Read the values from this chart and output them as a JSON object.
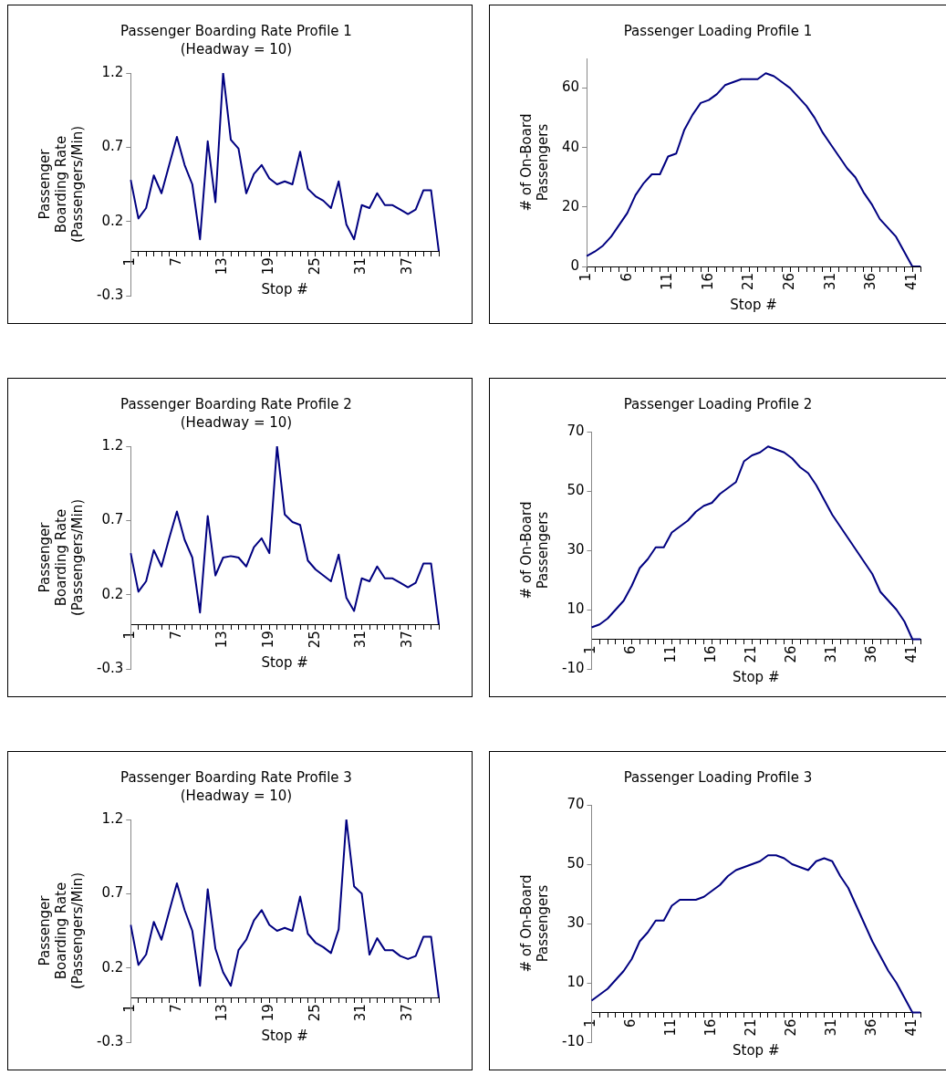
{
  "chart_data": [
    {
      "type": "line",
      "title": "Passenger Boarding Rate Profile 1",
      "subtitle": "(Headway = 10)",
      "xlabel": "Stop #",
      "ylabel": "Passenger\nBoarding Rate\n(Passengers/Min)",
      "categories": [
        "1",
        null,
        null,
        null,
        null,
        null,
        "7",
        null,
        null,
        null,
        null,
        null,
        "13",
        null,
        null,
        null,
        null,
        null,
        "19",
        null,
        null,
        null,
        null,
        null,
        "25",
        null,
        null,
        null,
        null,
        null,
        "31",
        null,
        null,
        null,
        null,
        null,
        "37",
        null,
        null,
        null,
        null
      ],
      "series": [
        {
          "color": "#000080",
          "values": [
            0.48,
            0.22,
            0.29,
            0.51,
            0.39,
            0.58,
            0.77,
            0.58,
            0.45,
            0.08,
            0.74,
            0.33,
            1.2,
            0.75,
            0.69,
            0.39,
            0.52,
            0.58,
            0.49,
            0.45,
            0.47,
            0.45,
            0.67,
            0.42,
            0.37,
            0.34,
            0.29,
            0.47,
            0.18,
            0.08,
            0.31,
            0.29,
            0.39,
            0.31,
            0.31,
            0.28,
            0.25,
            0.28,
            0.41,
            0.41,
            0
          ]
        }
      ],
      "ylim": [
        -0.3,
        1.2
      ],
      "yticks": [
        -0.3,
        0.2,
        0.7,
        1.2
      ],
      "marker": "none"
    },
    {
      "type": "line",
      "title": "Passenger Loading Profile 1",
      "xlabel": "Stop #",
      "ylabel": "# of On-Board\nPassengers",
      "categories": [
        "1",
        null,
        null,
        null,
        null,
        "6",
        null,
        null,
        null,
        null,
        "11",
        null,
        null,
        null,
        null,
        "16",
        null,
        null,
        null,
        null,
        "21",
        null,
        null,
        null,
        null,
        "26",
        null,
        null,
        null,
        null,
        "31",
        null,
        null,
        null,
        null,
        "36",
        null,
        null,
        null,
        null,
        "41",
        null
      ],
      "series": [
        {
          "color": "#000080",
          "values": [
            3.5,
            5,
            7,
            10,
            14,
            18,
            24,
            28,
            31,
            31,
            37,
            38,
            46,
            51,
            55,
            56,
            58,
            61,
            62,
            63,
            63,
            63,
            65,
            64,
            62,
            60,
            57,
            54,
            50,
            45,
            41,
            37,
            33,
            30,
            25,
            21,
            16,
            13,
            10,
            5,
            0,
            0
          ]
        }
      ],
      "ylim": [
        0,
        70
      ],
      "yticks": [
        0,
        20,
        40,
        60
      ],
      "marker": "none"
    },
    {
      "type": "line",
      "title": "Passenger Boarding Rate Profile 2",
      "subtitle": "(Headway = 10)",
      "xlabel": "Stop #",
      "ylabel": "Passenger\nBoarding Rate\n(Passengers/Min)",
      "categories": [
        "1",
        null,
        null,
        null,
        null,
        null,
        "7",
        null,
        null,
        null,
        null,
        null,
        "13",
        null,
        null,
        null,
        null,
        null,
        "19",
        null,
        null,
        null,
        null,
        null,
        "25",
        null,
        null,
        null,
        null,
        null,
        "31",
        null,
        null,
        null,
        null,
        null,
        "37",
        null,
        null,
        null,
        null
      ],
      "series": [
        {
          "color": "#000080",
          "values": [
            0.48,
            0.22,
            0.29,
            0.5,
            0.39,
            0.58,
            0.76,
            0.57,
            0.45,
            0.08,
            0.73,
            0.33,
            0.45,
            0.46,
            0.45,
            0.39,
            0.52,
            0.58,
            0.48,
            1.2,
            0.74,
            0.69,
            0.67,
            0.43,
            0.37,
            0.33,
            0.29,
            0.47,
            0.18,
            0.09,
            0.31,
            0.29,
            0.39,
            0.31,
            0.31,
            0.28,
            0.25,
            0.28,
            0.41,
            0.41,
            0
          ]
        }
      ],
      "ylim": [
        -0.3,
        1.2
      ],
      "yticks": [
        -0.3,
        0.2,
        0.7,
        1.2
      ],
      "marker": "none"
    },
    {
      "type": "line",
      "title": "Passenger Loading Profile 2",
      "xlabel": "Stop #",
      "ylabel": "# of On-Board\nPassengers",
      "categories": [
        "1",
        null,
        null,
        null,
        null,
        "6",
        null,
        null,
        null,
        null,
        "11",
        null,
        null,
        null,
        null,
        "16",
        null,
        null,
        null,
        null,
        "21",
        null,
        null,
        null,
        null,
        "26",
        null,
        null,
        null,
        null,
        "31",
        null,
        null,
        null,
        null,
        "36",
        null,
        null,
        null,
        null,
        "41",
        null
      ],
      "series": [
        {
          "color": "#000080",
          "values": [
            4,
            5,
            7,
            10,
            13,
            18,
            24,
            27,
            31,
            31,
            36,
            38,
            40,
            43,
            45,
            46,
            49,
            51,
            53,
            60,
            62,
            63,
            65,
            64,
            63,
            61,
            58,
            56,
            52,
            47,
            42,
            38,
            34,
            30,
            26,
            22,
            16,
            13,
            10,
            6,
            0,
            0
          ]
        }
      ],
      "ylim": [
        -10,
        70
      ],
      "yticks": [
        -10,
        10,
        30,
        50,
        70
      ],
      "marker": "none"
    },
    {
      "type": "line",
      "title": "Passenger Boarding Rate Profile 3",
      "subtitle": "(Headway = 10)",
      "xlabel": "Stop #",
      "ylabel": "Passenger\nBoarding Rate\n(Passengers/Min)",
      "categories": [
        "1",
        null,
        null,
        null,
        null,
        null,
        "7",
        null,
        null,
        null,
        null,
        null,
        "13",
        null,
        null,
        null,
        null,
        null,
        "19",
        null,
        null,
        null,
        null,
        null,
        "25",
        null,
        null,
        null,
        null,
        null,
        "31",
        null,
        null,
        null,
        null,
        null,
        "37",
        null,
        null,
        null,
        null
      ],
      "series": [
        {
          "color": "#000080",
          "values": [
            0.49,
            0.22,
            0.29,
            0.51,
            0.39,
            0.58,
            0.77,
            0.59,
            0.45,
            0.08,
            0.73,
            0.33,
            0.17,
            0.08,
            0.32,
            0.39,
            0.52,
            0.59,
            0.49,
            0.45,
            0.47,
            0.45,
            0.68,
            0.43,
            0.37,
            0.34,
            0.3,
            0.46,
            1.2,
            0.75,
            0.7,
            0.29,
            0.4,
            0.32,
            0.32,
            0.28,
            0.26,
            0.28,
            0.41,
            0.41,
            0
          ]
        }
      ],
      "ylim": [
        -0.3,
        1.2
      ],
      "yticks": [
        -0.3,
        0.2,
        0.7,
        1.2
      ],
      "marker": "none"
    },
    {
      "type": "line",
      "title": "Passenger Loading Profile 3",
      "xlabel": "Stop #",
      "ylabel": "# of On-Board\nPassengers",
      "categories": [
        "1",
        null,
        null,
        null,
        null,
        "6",
        null,
        null,
        null,
        null,
        "11",
        null,
        null,
        null,
        null,
        "16",
        null,
        null,
        null,
        null,
        "21",
        null,
        null,
        null,
        null,
        "26",
        null,
        null,
        null,
        null,
        "31",
        null,
        null,
        null,
        null,
        "36",
        null,
        null,
        null,
        null,
        "41",
        null
      ],
      "series": [
        {
          "color": "#000080",
          "values": [
            4,
            6,
            8,
            11,
            14,
            18,
            24,
            27,
            31,
            31,
            36,
            38,
            38,
            38,
            39,
            41,
            43,
            46,
            48,
            49,
            50,
            51,
            53,
            53,
            52,
            50,
            49,
            48,
            51,
            52,
            51,
            46,
            42,
            36,
            30,
            24,
            19,
            14,
            10,
            5,
            0,
            0
          ]
        }
      ],
      "ylim": [
        -10,
        70
      ],
      "yticks": [
        -10,
        10,
        30,
        50,
        70
      ],
      "marker": "none"
    }
  ]
}
